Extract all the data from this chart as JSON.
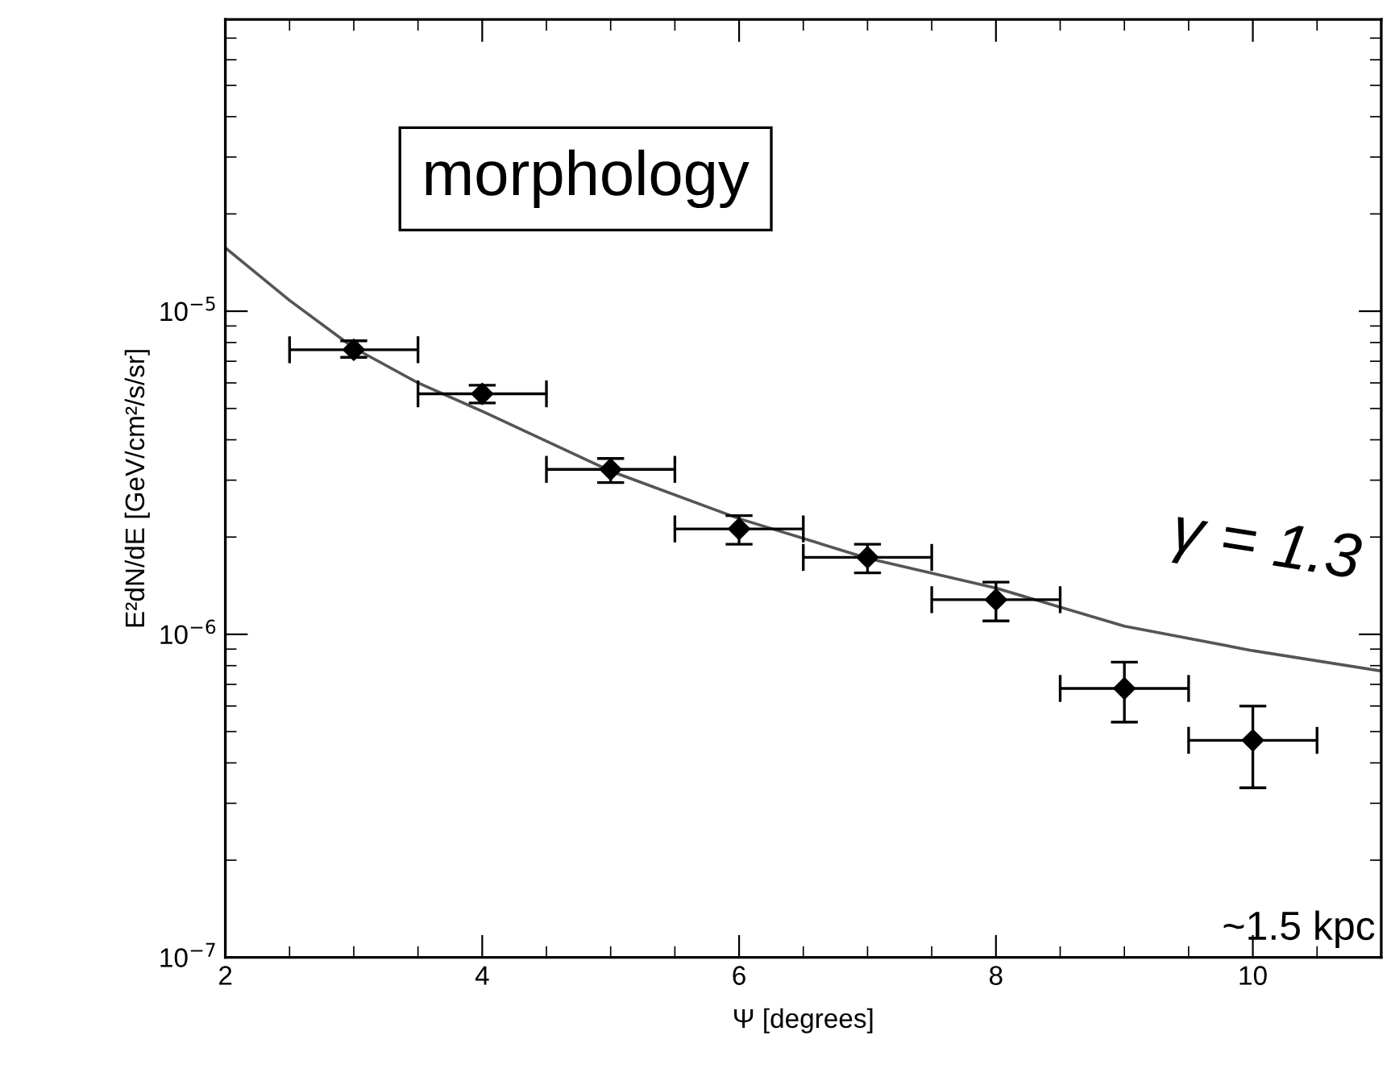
{
  "chart_data": {
    "type": "scatter",
    "xlabel": "Ψ [degrees]",
    "ylabel": "E²dN/dE [GeV/cm²/s/sr]",
    "log": "y",
    "xlim": [
      2,
      11
    ],
    "xticks": [
      2,
      4,
      6,
      8,
      10
    ],
    "ylim": [
      1e-07,
      8e-05
    ],
    "yticks": [
      {
        "value": 1e-07,
        "label": "10$^{−7}$"
      },
      {
        "value": 1e-06,
        "label": "10$^{−6}$"
      },
      {
        "value": 1e-05,
        "label": "10$^{−5}$"
      }
    ],
    "grid": false,
    "marker": "diamond",
    "series": [
      {
        "color": "#000000",
        "x": [
          3,
          4,
          5,
          6,
          7,
          8,
          9,
          10
        ],
        "values": [
          7.6e-06,
          5.55e-06,
          3.24e-06,
          2.12e-06,
          1.73e-06,
          1.28e-06,
          6.8e-07,
          4.7e-07
        ],
        "errors": [
          [
            7.2e-06,
            8.1e-06
          ],
          [
            5.2e-06,
            5.9e-06
          ],
          [
            2.95e-06,
            3.5e-06
          ],
          [
            1.9e-06,
            2.33e-06
          ],
          [
            1.55e-06,
            1.9e-06
          ],
          [
            1.1e-06,
            1.45e-06
          ],
          [
            5.35e-07,
            8.2e-07
          ],
          [
            3.35e-07,
            6e-07
          ]
        ],
        "xerrors": [
          0.5,
          0.5,
          0.5,
          0.5,
          0.5,
          0.5,
          0.5,
          0.5
        ]
      },
      {
        "type": "line",
        "color": "#555555",
        "marker": "none",
        "line_style": "solid",
        "x": [
          2,
          2.5,
          3,
          3.5,
          4,
          5,
          6,
          7,
          8,
          9,
          10,
          11
        ],
        "values": [
          1.57e-05,
          1.08e-05,
          7.7e-06,
          6e-06,
          4.9e-06,
          3.2e-06,
          2.28e-06,
          1.72e-06,
          1.39e-06,
          1.06e-06,
          8.9e-07,
          7.7e-07
        ]
      }
    ],
    "annotations": [
      "morphology",
      "γ = 1.3",
      "~1.5 kpc"
    ]
  }
}
